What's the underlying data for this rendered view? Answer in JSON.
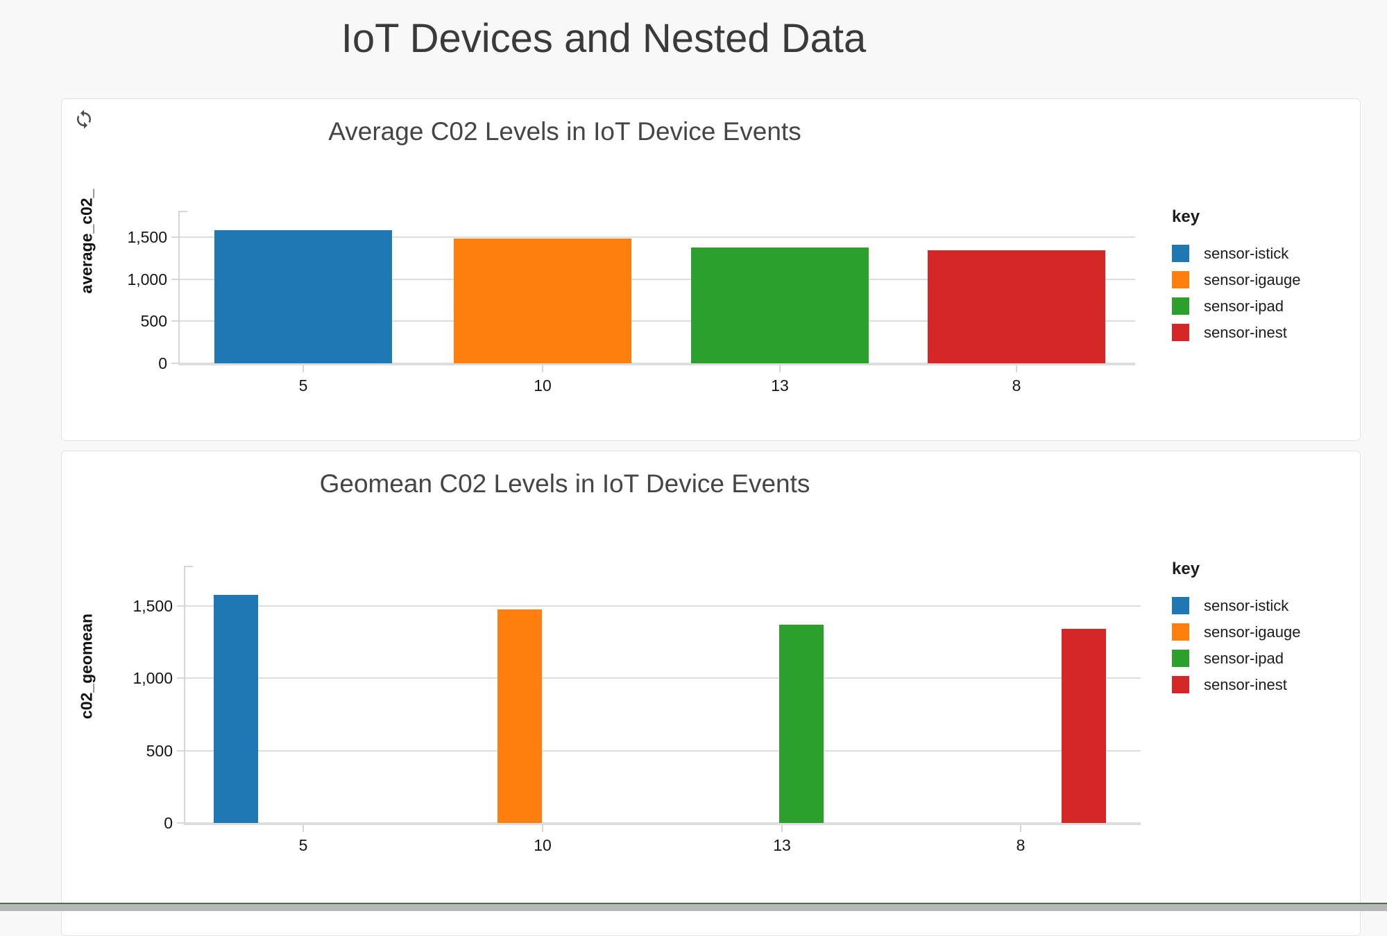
{
  "page": {
    "title": "IoT Devices and Nested Data"
  },
  "chart_data": [
    {
      "type": "bar",
      "title": "Average C02 Levels in IoT Device Events",
      "xlabel": "",
      "ylabel": "average_c02_",
      "categories": [
        "5",
        "10",
        "13",
        "8"
      ],
      "series": [
        {
          "name": "sensor-istick",
          "category": "5",
          "value": 1580,
          "color": "#1f77b4"
        },
        {
          "name": "sensor-igauge",
          "category": "10",
          "value": 1480,
          "color": "#ff7f0e"
        },
        {
          "name": "sensor-ipad",
          "category": "13",
          "value": 1375,
          "color": "#2ca02c"
        },
        {
          "name": "sensor-inest",
          "category": "8",
          "value": 1345,
          "color": "#d62728"
        }
      ],
      "yticks": [
        0,
        500,
        1000,
        1500
      ],
      "ytick_labels": [
        "0",
        "500",
        "1,000",
        "1,500"
      ],
      "ylim": [
        0,
        1810
      ],
      "grid": true,
      "legend_title": "key",
      "legend_position": "right"
    },
    {
      "type": "bar",
      "title": "Geomean C02 Levels in IoT Device Events",
      "xlabel": "",
      "ylabel": "c02_geomean",
      "categories": [
        "5",
        "10",
        "13",
        "8"
      ],
      "series": [
        {
          "name": "sensor-istick",
          "category": "5",
          "value": 1578,
          "color": "#1f77b4"
        },
        {
          "name": "sensor-igauge",
          "category": "10",
          "value": 1476,
          "color": "#ff7f0e"
        },
        {
          "name": "sensor-ipad",
          "category": "13",
          "value": 1372,
          "color": "#2ca02c"
        },
        {
          "name": "sensor-inest",
          "category": "8",
          "value": 1343,
          "color": "#d62728"
        }
      ],
      "yticks": [
        0,
        500,
        1000,
        1500
      ],
      "ytick_labels": [
        "0",
        "500",
        "1,000",
        "1,500"
      ],
      "ylim": [
        0,
        1810
      ],
      "grid": true,
      "legend_title": "key",
      "legend_position": "right"
    }
  ]
}
